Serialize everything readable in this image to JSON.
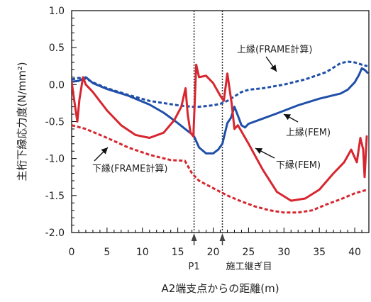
{
  "chart_data": {
    "type": "line",
    "xlabel": "A2端支点からの距離(m)",
    "ylabel": "主桁下縁応力度(N/mm²)",
    "xlim": [
      0,
      42
    ],
    "ylim": [
      -2.0,
      1.0
    ],
    "x_ticks": [
      "0",
      "5",
      "10",
      "15",
      "20",
      "25",
      "30",
      "35",
      "40"
    ],
    "y_ticks": [
      "1.0",
      "0.5",
      "0.0",
      "-0.5",
      "-1.0",
      "-1.5",
      "-2.0"
    ],
    "grid": false,
    "legend": "none (inline annotations)",
    "colors": {
      "blue": "#1f4fa8",
      "red": "#d7262f"
    },
    "vlines": [
      {
        "label": "P1",
        "x": 17.3
      },
      {
        "label": "施工継ぎ目",
        "x": 21.3
      }
    ],
    "series": [
      {
        "name": "上縁(FRAME計算)",
        "style": "dashed",
        "color": "#1f4fa8",
        "points": [
          [
            0,
            0.07
          ],
          [
            1,
            0.09
          ],
          [
            2,
            0.08
          ],
          [
            3,
            0.03
          ],
          [
            5,
            -0.05
          ],
          [
            8,
            -0.14
          ],
          [
            11,
            -0.22
          ],
          [
            13,
            -0.25
          ],
          [
            15,
            -0.28
          ],
          [
            17,
            -0.3
          ],
          [
            18,
            -0.3
          ],
          [
            19,
            -0.29
          ],
          [
            20,
            -0.28
          ],
          [
            21,
            -0.26
          ],
          [
            22,
            -0.22
          ],
          [
            23,
            -0.16
          ],
          [
            24,
            -0.1
          ],
          [
            25,
            -0.07
          ],
          [
            27,
            -0.05
          ],
          [
            30,
            0.0
          ],
          [
            33,
            0.07
          ],
          [
            36,
            0.17
          ],
          [
            38,
            0.29
          ],
          [
            39,
            0.31
          ],
          [
            40,
            0.3
          ],
          [
            41,
            0.27
          ],
          [
            41.8,
            0.25
          ]
        ]
      },
      {
        "name": "上縁(FEM)",
        "style": "solid",
        "color": "#1f4fa8",
        "points": [
          [
            0,
            0.04
          ],
          [
            1,
            0.05
          ],
          [
            2,
            0.1
          ],
          [
            3,
            0.02
          ],
          [
            5,
            -0.06
          ],
          [
            8,
            -0.15
          ],
          [
            11,
            -0.27
          ],
          [
            13,
            -0.38
          ],
          [
            15,
            -0.52
          ],
          [
            16.3,
            -0.62
          ],
          [
            17,
            -0.67
          ],
          [
            17.3,
            -0.7
          ],
          [
            18,
            -0.85
          ],
          [
            19,
            -0.93
          ],
          [
            20,
            -0.93
          ],
          [
            20.7,
            -0.88
          ],
          [
            21.3,
            -0.8
          ],
          [
            22,
            -0.52
          ],
          [
            22.5,
            -0.45
          ],
          [
            23,
            -0.3
          ],
          [
            23.5,
            -0.42
          ],
          [
            24,
            -0.55
          ],
          [
            24.5,
            -0.58
          ],
          [
            25,
            -0.53
          ],
          [
            27,
            -0.46
          ],
          [
            29,
            -0.39
          ],
          [
            32,
            -0.28
          ],
          [
            35,
            -0.19
          ],
          [
            38,
            -0.12
          ],
          [
            39,
            -0.07
          ],
          [
            40,
            0.03
          ],
          [
            40.6,
            0.13
          ],
          [
            41,
            0.22
          ],
          [
            41.4,
            0.2
          ],
          [
            41.8,
            0.16
          ]
        ]
      },
      {
        "name": "下縁(FEM)",
        "style": "solid",
        "color": "#d7262f",
        "points": [
          [
            0,
            0.04
          ],
          [
            0.3,
            -0.17
          ],
          [
            0.8,
            -0.5
          ],
          [
            1.1,
            -0.2
          ],
          [
            1.6,
            0.1
          ],
          [
            2,
            0.0
          ],
          [
            3,
            -0.1
          ],
          [
            5,
            -0.35
          ],
          [
            7,
            -0.55
          ],
          [
            9,
            -0.68
          ],
          [
            11,
            -0.72
          ],
          [
            13,
            -0.65
          ],
          [
            14.5,
            -0.48
          ],
          [
            15.5,
            -0.3
          ],
          [
            16.1,
            -0.05
          ],
          [
            16.4,
            -0.4
          ],
          [
            16.8,
            -0.65
          ],
          [
            17.2,
            -0.7
          ],
          [
            17.6,
            0.27
          ],
          [
            18,
            0.1
          ],
          [
            19,
            0.12
          ],
          [
            20,
            0.02
          ],
          [
            21,
            -0.15
          ],
          [
            21.5,
            -0.22
          ],
          [
            22,
            0.15
          ],
          [
            22.6,
            -0.25
          ],
          [
            23,
            -0.6
          ],
          [
            23.5,
            -0.55
          ],
          [
            25,
            -0.8
          ],
          [
            27,
            -1.15
          ],
          [
            29,
            -1.45
          ],
          [
            31,
            -1.57
          ],
          [
            33,
            -1.54
          ],
          [
            35,
            -1.42
          ],
          [
            37,
            -1.2
          ],
          [
            38.5,
            -1.05
          ],
          [
            39.5,
            -0.88
          ],
          [
            40.3,
            -1.05
          ],
          [
            40.8,
            -0.72
          ],
          [
            41.2,
            -0.88
          ],
          [
            41.4,
            -1.25
          ],
          [
            41.7,
            -0.7
          ]
        ]
      },
      {
        "name": "下縁(FRAME計算)",
        "style": "dashed",
        "color": "#d7262f",
        "points": [
          [
            0,
            -0.55
          ],
          [
            2,
            -0.6
          ],
          [
            5,
            -0.72
          ],
          [
            8,
            -0.85
          ],
          [
            11,
            -0.95
          ],
          [
            14,
            -1.02
          ],
          [
            16,
            -1.03
          ],
          [
            17,
            -1.2
          ],
          [
            18,
            -1.3
          ],
          [
            20,
            -1.4
          ],
          [
            22,
            -1.5
          ],
          [
            24,
            -1.58
          ],
          [
            26,
            -1.65
          ],
          [
            28,
            -1.7
          ],
          [
            30,
            -1.73
          ],
          [
            32,
            -1.73
          ],
          [
            34,
            -1.7
          ],
          [
            36,
            -1.62
          ],
          [
            38,
            -1.55
          ],
          [
            40,
            -1.47
          ],
          [
            41.8,
            -1.42
          ]
        ]
      }
    ],
    "annotations": [
      {
        "text": "上縁(FRAME計算)",
        "series": "上縁(FRAME計算)"
      },
      {
        "text": "上縁(FEM)",
        "series": "上縁(FEM)"
      },
      {
        "text": "下縁(FEM)",
        "series": "下縁(FEM)"
      },
      {
        "text": "下縁(FRAME計算)",
        "series": "下縁(FRAME計算)"
      }
    ]
  }
}
